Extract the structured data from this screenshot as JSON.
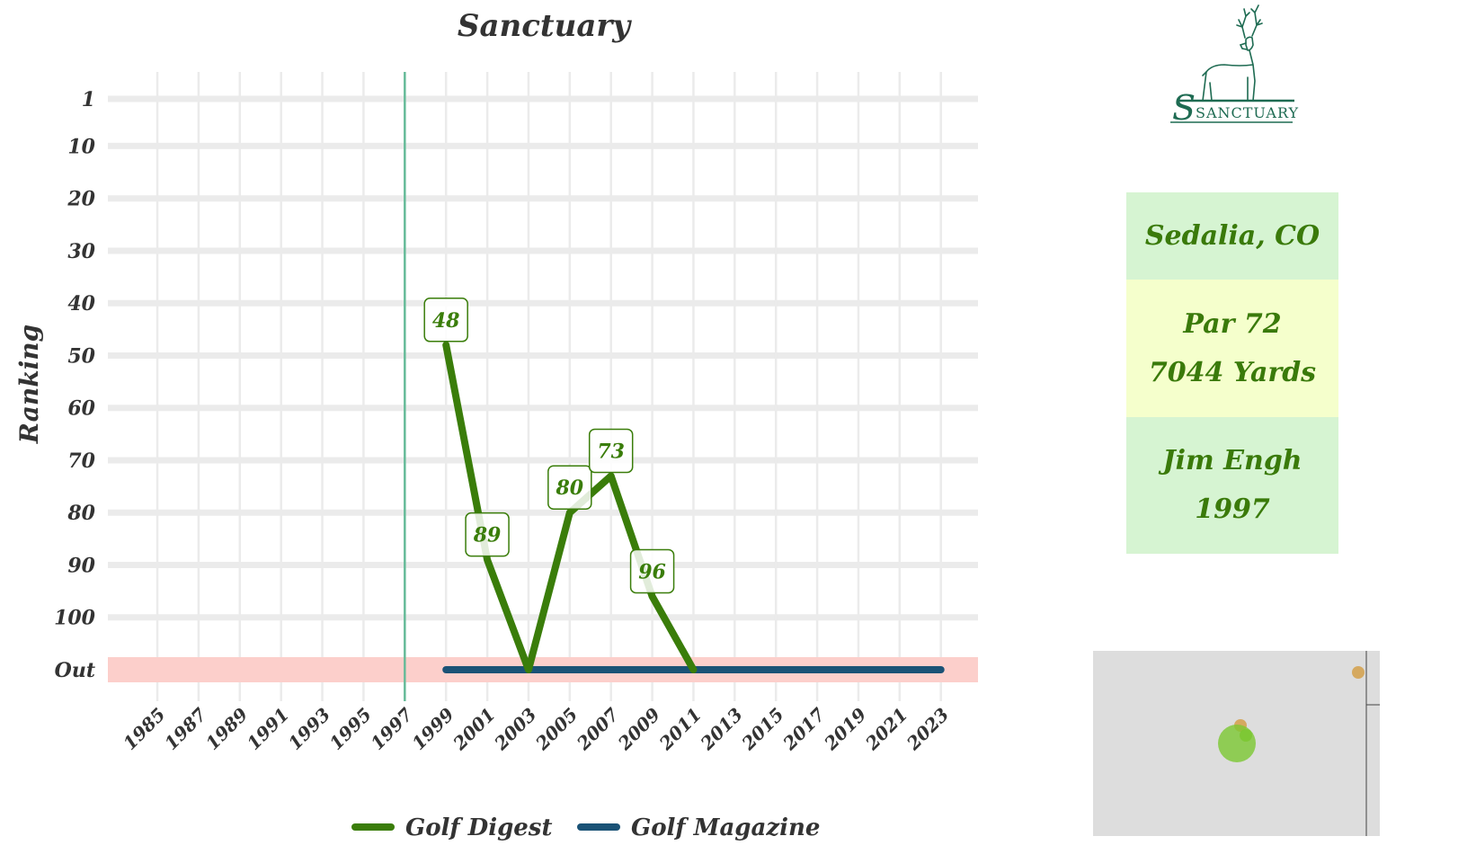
{
  "chart_data": {
    "type": "line",
    "title": "Sanctuary",
    "ylabel": "Ranking",
    "xlabel": "",
    "x_ticks": [
      "1985",
      "1987",
      "1989",
      "1991",
      "1993",
      "1995",
      "1997",
      "1999",
      "2001",
      "2003",
      "2005",
      "2007",
      "2009",
      "2011",
      "2013",
      "2015",
      "2017",
      "2019",
      "2021",
      "2023"
    ],
    "y_ticks": [
      "1",
      "10",
      "20",
      "30",
      "40",
      "50",
      "60",
      "70",
      "80",
      "90",
      "100",
      "Out"
    ],
    "y_tick_values": [
      1,
      10,
      20,
      30,
      40,
      50,
      60,
      70,
      80,
      90,
      100,
      110
    ],
    "xlim": [
      1982.6,
      2024.8
    ],
    "ylim": [
      1,
      110
    ],
    "out_value": 110,
    "reference_line_year": 1997,
    "series": [
      {
        "name": "Golf Digest",
        "color": "#3a7d0a",
        "points": [
          {
            "year": 1999,
            "rank": 48,
            "label": "48"
          },
          {
            "year": 2001,
            "rank": 89,
            "label": "89"
          },
          {
            "year": 2003,
            "rank": "Out",
            "label": ""
          },
          {
            "year": 2005,
            "rank": 80,
            "label": "80"
          },
          {
            "year": 2007,
            "rank": 73,
            "label": "73"
          },
          {
            "year": 2009,
            "rank": 96,
            "label": "96"
          },
          {
            "year": 2011,
            "rank": "Out",
            "label": ""
          }
        ]
      },
      {
        "name": "Golf Magazine",
        "color": "#1a5276",
        "points": [
          {
            "year": 1999,
            "rank": "Out",
            "label": ""
          },
          {
            "year": 2023,
            "rank": "Out",
            "label": ""
          }
        ]
      }
    ],
    "grid": true,
    "legend_position": "bottom"
  },
  "info": {
    "location": "Sedalia, CO",
    "par": "Par 72",
    "yards": "7044 Yards",
    "architect": "Jim Engh",
    "year": "1997"
  },
  "logo": {
    "text": "SANCTUARY",
    "icon": "elk-icon",
    "color": "#1e6b52"
  },
  "colors": {
    "out_band": "#fccfcb",
    "reference_line": "#66bb99",
    "grid": "#ebebeb",
    "label_text": "#3a7d0a"
  }
}
